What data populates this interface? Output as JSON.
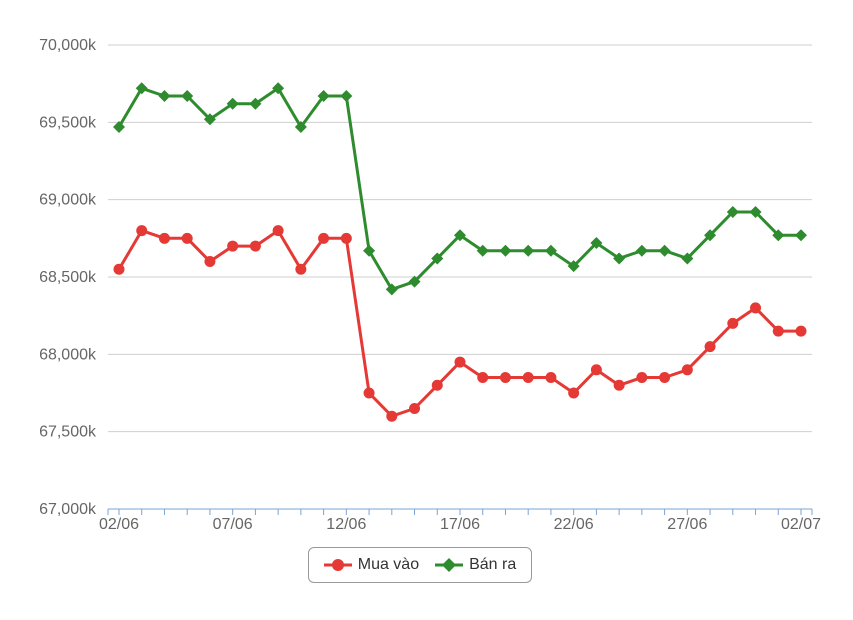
{
  "chart_data": {
    "type": "line",
    "x": [
      "02/06",
      "03/06",
      "04/06",
      "05/06",
      "06/06",
      "07/06",
      "08/06",
      "09/06",
      "10/06",
      "11/06",
      "12/06",
      "13/06",
      "14/06",
      "15/06",
      "16/06",
      "17/06",
      "18/06",
      "19/06",
      "20/06",
      "21/06",
      "22/06",
      "23/06",
      "24/06",
      "25/06",
      "26/06",
      "27/06",
      "28/06",
      "29/06",
      "30/06",
      "01/07",
      "02/07"
    ],
    "x_tick_labels": [
      "02/06",
      "07/06",
      "12/06",
      "17/06",
      "22/06",
      "27/06",
      "02/07"
    ],
    "x_tick_indices": [
      0,
      5,
      10,
      15,
      20,
      25,
      30
    ],
    "y_tick_labels": [
      "67,000k",
      "67,500k",
      "68,000k",
      "68,500k",
      "69,000k",
      "69,500k",
      "70,000k"
    ],
    "ylim": [
      67000,
      70000
    ],
    "y_ticks": [
      67000,
      67500,
      68000,
      68500,
      69000,
      69500,
      70000
    ],
    "grid": true,
    "legend_position": "bottom-center",
    "series": [
      {
        "name": "Mua vào",
        "color": "#e53935",
        "marker": "circle",
        "values": [
          68550,
          68800,
          68750,
          68750,
          68600,
          68700,
          68700,
          68800,
          68550,
          68750,
          68750,
          67750,
          67600,
          67650,
          67800,
          67950,
          67850,
          67850,
          67850,
          67850,
          67750,
          67900,
          67800,
          67850,
          67850,
          67900,
          68050,
          68200,
          68300,
          68150,
          68150
        ]
      },
      {
        "name": "Bán ra",
        "color": "#2e8b2e",
        "marker": "diamond",
        "values": [
          69470,
          69720,
          69670,
          69670,
          69520,
          69620,
          69620,
          69720,
          69470,
          69670,
          69670,
          68670,
          68420,
          68470,
          68620,
          68770,
          68670,
          68670,
          68670,
          68670,
          68570,
          68720,
          68620,
          68670,
          68670,
          68620,
          68770,
          68920,
          68920,
          68770,
          68770
        ]
      }
    ]
  }
}
